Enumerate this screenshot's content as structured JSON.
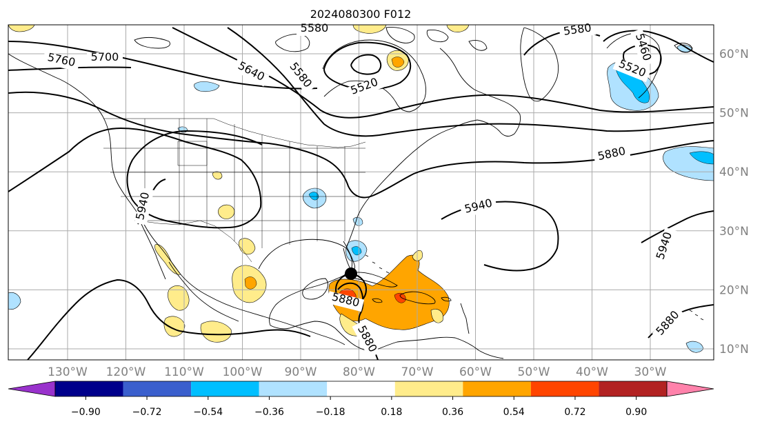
{
  "title": "2024080300 F012",
  "lon_labels": [
    "130°W",
    "120°W",
    "110°W",
    "100°W",
    "90°W",
    "80°W",
    "70°W",
    "60°W",
    "50°W",
    "40°W",
    "30°W"
  ],
  "lat_labels": [
    "10°N",
    "20°N",
    "30°N",
    "40°N",
    "50°N",
    "60°N"
  ],
  "contour_labels": [
    {
      "id": "c5760",
      "text": "5760"
    },
    {
      "id": "c5700",
      "text": "5700"
    },
    {
      "id": "c5640",
      "text": "5640"
    },
    {
      "id": "c5580a",
      "text": "5580"
    },
    {
      "id": "c5580b",
      "text": "5580"
    },
    {
      "id": "c5580c",
      "text": "5580"
    },
    {
      "id": "c5520a",
      "text": "5520"
    },
    {
      "id": "c5460",
      "text": "5460"
    },
    {
      "id": "c5520b",
      "text": "5520"
    },
    {
      "id": "c5880a",
      "text": "5880"
    },
    {
      "id": "c5940a",
      "text": "5940"
    },
    {
      "id": "c5940b",
      "text": "5940"
    },
    {
      "id": "c5940c",
      "text": "5940"
    },
    {
      "id": "c5880b",
      "text": "5880"
    },
    {
      "id": "c5880c",
      "text": "5880"
    },
    {
      "id": "c5880d",
      "text": "5880"
    }
  ],
  "colorbar": {
    "ticks": [
      "−0.90",
      "−0.72",
      "−0.54",
      "−0.36",
      "−0.18",
      "0.18",
      "0.36",
      "0.54",
      "0.72",
      "0.90"
    ],
    "colors": [
      "#9932cc",
      "#00008b",
      "#3a5fcd",
      "#00bfff",
      "#b0e2ff",
      "#ffffff",
      "#ffec8b",
      "#ffa500",
      "#ff4500",
      "#b22222",
      "#ff82ab"
    ]
  },
  "colors": {
    "grid": "#aaaaaa",
    "contour": "#000000",
    "coast": "#000000",
    "tick_label": "#808080"
  }
}
